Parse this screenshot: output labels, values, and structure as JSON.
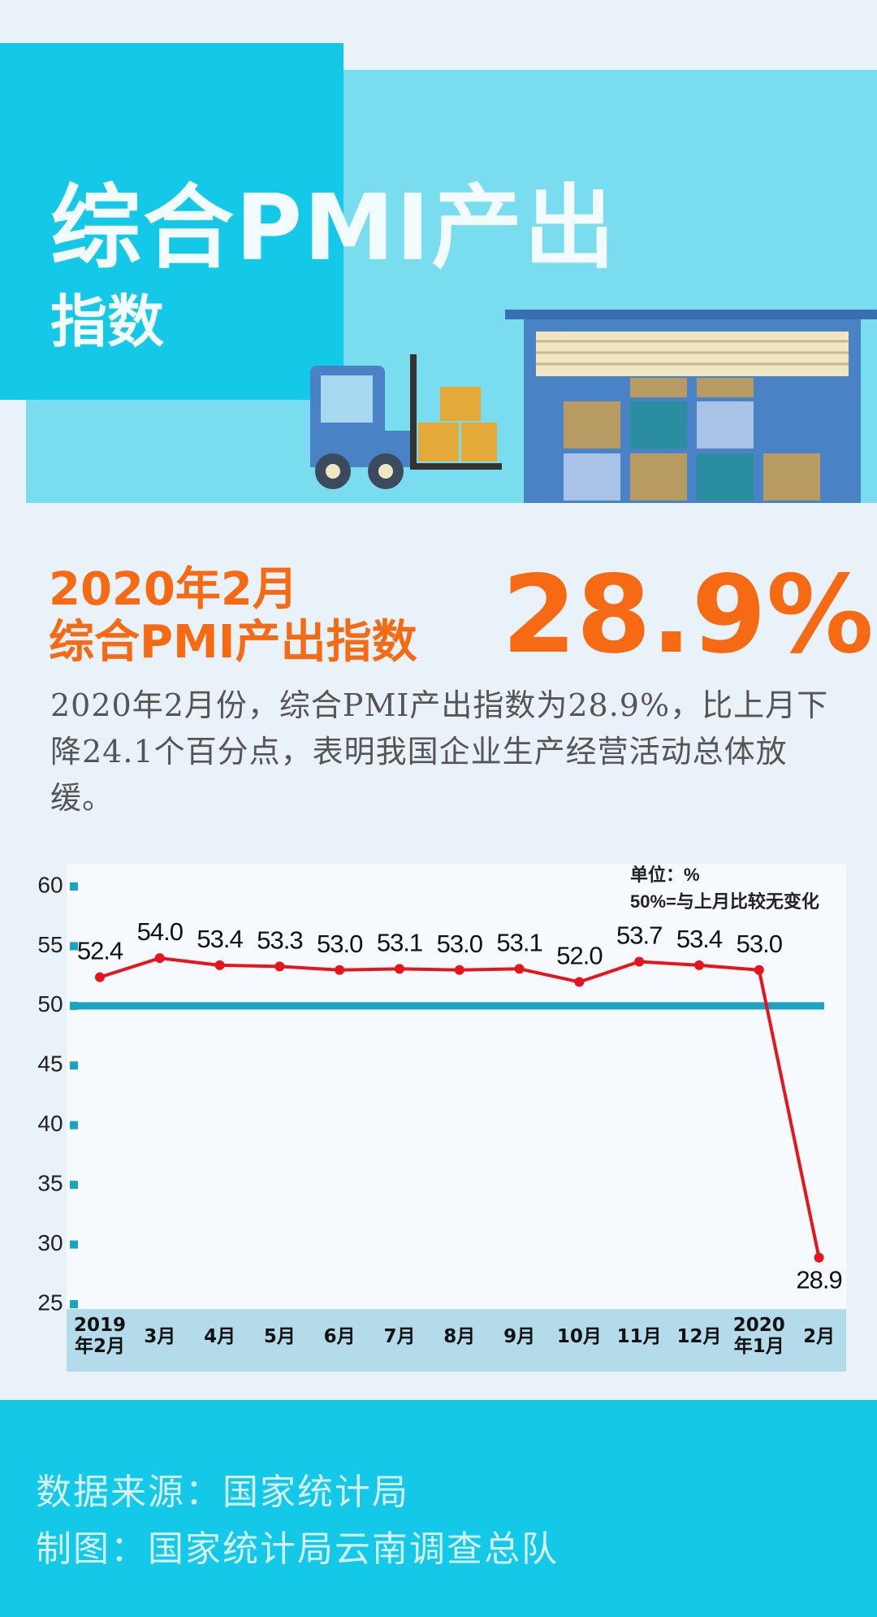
{
  "header": {
    "title": "综合PMI产出",
    "subtitle": "指数"
  },
  "highlight": {
    "line1": "2020年2月",
    "line2": "综合PMI产出指数",
    "value": "28.9%"
  },
  "description": "2020年2月份，综合PMI产出指数为28.9%，比上月下降24.1个百分点，表明我国企业生产经营活动总体放缓。",
  "chart_data": {
    "type": "line",
    "notes": [
      "单位：%",
      "50%=与上月比较无变化"
    ],
    "categories": [
      "2019年2月",
      "3月",
      "4月",
      "5月",
      "6月",
      "7月",
      "8月",
      "9月",
      "10月",
      "11月",
      "12月",
      "2020年1月",
      "2月"
    ],
    "series": [
      {
        "color": "#e8141c",
        "values": [
          52.4,
          54.0,
          53.4,
          53.3,
          53.0,
          53.1,
          53.0,
          53.1,
          52.0,
          53.7,
          53.4,
          53.0,
          28.9
        ],
        "value_labels": [
          "52.4",
          "54.0",
          "53.4",
          "53.3",
          "53.0",
          "53.1",
          "53.0",
          "53.1",
          "52.0",
          "53.7",
          "53.4",
          "53.0",
          "28.9"
        ]
      }
    ],
    "ylim": [
      25,
      60
    ],
    "yticks": [
      25,
      30,
      35,
      40,
      45,
      50,
      55,
      60
    ],
    "reference_line": {
      "value": 50,
      "color": "#1aa3c2"
    }
  },
  "footer": {
    "source": "数据来源：国家统计局",
    "credit": "制图：国家统计局云南调查总队"
  }
}
